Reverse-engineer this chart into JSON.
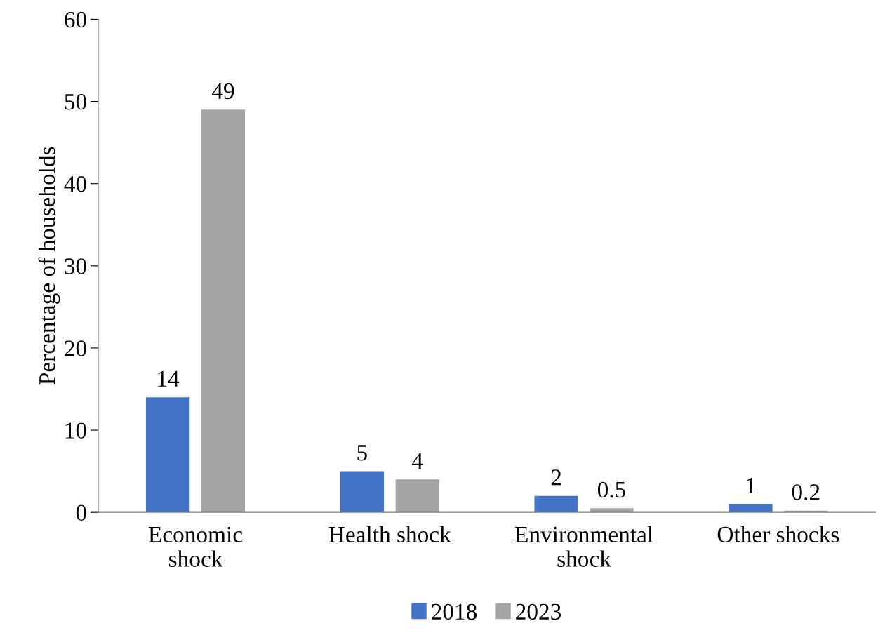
{
  "chart_data": {
    "type": "bar",
    "ylabel": "Percentage of households",
    "categories": [
      "Economic\nshock",
      "Health shock",
      "Environmental\nshock",
      "Other shocks"
    ],
    "series": [
      {
        "name": "2018",
        "color": "#4472c4",
        "values": [
          14,
          5,
          2,
          1
        ]
      },
      {
        "name": "2023",
        "color": "#a5a5a5",
        "values": [
          49,
          4,
          0.5,
          0.2
        ]
      }
    ],
    "ylim": [
      0,
      60
    ],
    "yticks": [
      0,
      10,
      20,
      30,
      40,
      50,
      60
    ],
    "grid": false,
    "legend": "bottom",
    "data_labels": true
  }
}
